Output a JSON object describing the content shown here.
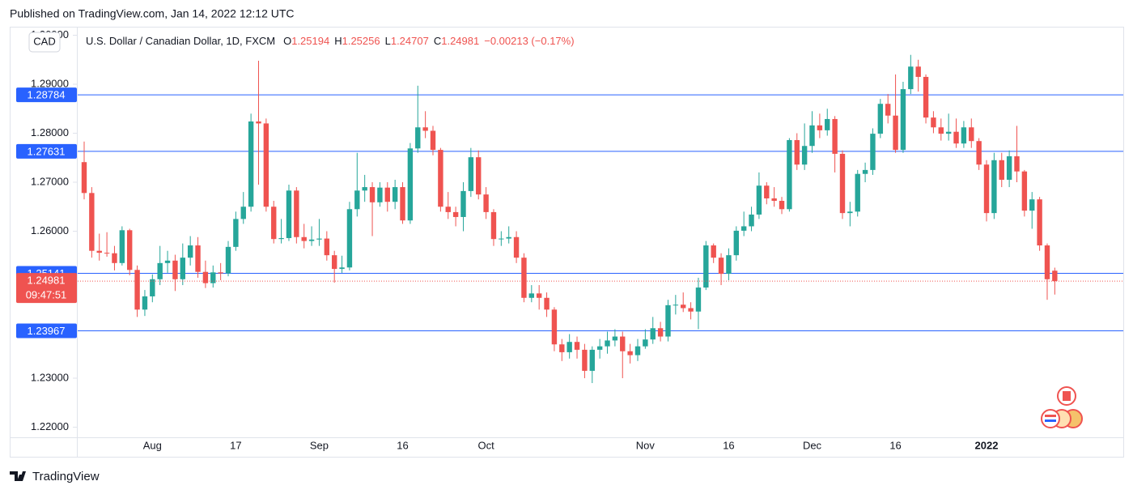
{
  "header": "Published on TradingView.com, Jan 14, 2022 12:12 UTC",
  "footer": "TradingView",
  "chart_data": {
    "type": "candlestick",
    "title": "U.S. Dollar / Canadian Dollar, 1D, FXCM",
    "ohlc_labels": [
      "O",
      "H",
      "L",
      "C"
    ],
    "change_label": "−0.00213 (−0.17%)",
    "currency": "CAD",
    "countdown": "09:47:51",
    "up_color": "#26a69a",
    "down_color": "#ef5350",
    "level_color": "#2962ff",
    "categories": [
      null,
      null,
      null,
      null,
      null,
      null,
      null,
      null,
      null,
      "Aug",
      null,
      null,
      null,
      null,
      null,
      null,
      null,
      null,
      null,
      null,
      "17",
      null,
      null,
      null,
      null,
      null,
      null,
      null,
      null,
      null,
      null,
      "Sep",
      null,
      null,
      null,
      null,
      null,
      null,
      null,
      null,
      null,
      null,
      "16",
      null,
      null,
      null,
      null,
      null,
      null,
      null,
      null,
      null,
      null,
      "Oct",
      null,
      null,
      null,
      null,
      null,
      null,
      null,
      null,
      null,
      null,
      null,
      null,
      null,
      null,
      null,
      null,
      null,
      null,
      null,
      null,
      "Nov",
      null,
      null,
      null,
      null,
      null,
      null,
      null,
      null,
      null,
      null,
      "16",
      null,
      null,
      null,
      null,
      null,
      null,
      null,
      null,
      null,
      null,
      "Dec",
      null,
      null,
      null,
      null,
      null,
      null,
      null,
      null,
      null,
      null,
      "16",
      null,
      null,
      null,
      null,
      null,
      null,
      null,
      null,
      null,
      null,
      null,
      "2022",
      null,
      null,
      null,
      null,
      null,
      null,
      null,
      null,
      null
    ],
    "open": [
      1.2741,
      1.2678,
      1.256,
      1.2556,
      1.2555,
      1.2535,
      1.2602,
      1.2521,
      1.244,
      1.2467,
      1.2502,
      1.2535,
      1.254,
      1.2502,
      1.2546,
      1.2571,
      1.2517,
      1.2494,
      1.2516,
      1.2514,
      1.2568,
      1.2625,
      1.265,
      1.2824,
      1.282,
      1.265,
      1.2584,
      1.2586,
      1.2683,
      1.2588,
      1.258,
      1.2583,
      1.2585,
      1.2551,
      1.2523,
      1.2526,
      1.2645,
      1.2683,
      1.269,
      1.2659,
      1.2689,
      1.266,
      1.269,
      1.2622,
      1.2769,
      1.2812,
      1.2805,
      1.2766,
      1.265,
      1.2639,
      1.2629,
      1.2682,
      1.2751,
      1.2675,
      1.2639,
      1.2584,
      1.2585,
      1.2588,
      1.2546,
      1.2464,
      1.2473,
      1.2464,
      1.244,
      1.2369,
      1.2353,
      1.2374,
      1.2358,
      1.2315,
      1.2358,
      1.2365,
      1.2377,
      1.2385,
      1.2355,
      1.2347,
      1.2365,
      1.2379,
      1.2402,
      1.2385,
      1.2449,
      1.245,
      1.2443,
      1.2436,
      1.2485,
      1.2571,
      1.2546,
      1.2513,
      1.2551,
      1.2601,
      1.261,
      1.2634,
      1.2693,
      1.2667,
      1.2662,
      1.2645,
      1.2786,
      1.2736,
      1.2774,
      1.2816,
      1.2806,
      1.2829,
      1.2758,
      1.2637,
      1.264,
      1.2717,
      1.2725,
      1.2799,
      1.286,
      1.2836,
      1.2766,
      1.289,
      1.2936,
      1.2915,
      1.2832,
      1.2812,
      1.2799,
      1.2803,
      1.2779,
      1.2812,
      1.2784,
      1.2736,
      1.2637,
      1.2745,
      1.2705,
      1.2753,
      1.2722,
      1.2642,
      1.2665,
      1.2571,
      1.25194
    ],
    "high": [
      1.2783,
      1.269,
      1.2595,
      1.2598,
      1.257,
      1.261,
      1.2605,
      1.253,
      1.248,
      1.2512,
      1.257,
      1.256,
      1.2552,
      1.2575,
      1.259,
      1.2588,
      1.254,
      1.253,
      1.2535,
      1.258,
      1.264,
      1.268,
      1.284,
      1.2948,
      1.283,
      1.2662,
      1.2625,
      1.2695,
      1.269,
      1.2615,
      1.261,
      1.2625,
      1.26,
      1.256,
      1.255,
      1.266,
      1.276,
      1.2715,
      1.27,
      1.27,
      1.27,
      1.2705,
      1.27,
      1.278,
      1.2897,
      1.2845,
      1.2815,
      1.277,
      1.268,
      1.265,
      1.27,
      1.277,
      1.2765,
      1.269,
      1.2645,
      1.26,
      1.261,
      1.26,
      1.2555,
      1.249,
      1.249,
      1.2475,
      1.2445,
      1.238,
      1.239,
      1.2385,
      1.237,
      1.2365,
      1.238,
      1.2395,
      1.24,
      1.2395,
      1.237,
      1.238,
      1.24,
      1.2425,
      1.2415,
      1.246,
      1.247,
      1.2475,
      1.2455,
      1.2505,
      1.258,
      1.2575,
      1.2555,
      1.2565,
      1.261,
      1.264,
      1.265,
      1.272,
      1.27,
      1.269,
      1.267,
      1.279,
      1.28,
      1.282,
      1.2845,
      1.284,
      1.285,
      1.2835,
      1.2765,
      1.266,
      1.2725,
      1.274,
      1.281,
      1.287,
      1.288,
      1.292,
      1.2905,
      1.296,
      1.295,
      1.292,
      1.2845,
      1.283,
      1.284,
      1.283,
      1.2825,
      1.283,
      1.279,
      1.2745,
      1.276,
      1.276,
      1.2765,
      1.2815,
      1.2725,
      1.268,
      1.267,
      1.2575,
      1.25256
    ],
    "low": [
      1.2665,
      1.2546,
      1.254,
      1.2548,
      1.252,
      1.253,
      1.251,
      1.2425,
      1.2427,
      1.2455,
      1.249,
      1.2515,
      1.2478,
      1.249,
      1.253,
      1.2505,
      1.2484,
      1.2485,
      1.25,
      1.2508,
      1.256,
      1.2615,
      1.264,
      1.2695,
      1.264,
      1.2575,
      1.2575,
      1.258,
      1.2575,
      1.2565,
      1.257,
      1.257,
      1.254,
      1.2495,
      1.2515,
      1.252,
      1.263,
      1.266,
      1.259,
      1.265,
      1.264,
      1.2645,
      1.2615,
      1.2615,
      1.276,
      1.279,
      1.2755,
      1.264,
      1.2625,
      1.261,
      1.26,
      1.267,
      1.2665,
      1.2625,
      1.257,
      1.257,
      1.2575,
      1.2535,
      1.2455,
      1.2455,
      1.244,
      1.2425,
      1.2355,
      1.2335,
      1.234,
      1.234,
      1.23,
      1.229,
      1.234,
      1.235,
      1.2365,
      1.23,
      1.233,
      1.2335,
      1.236,
      1.237,
      1.2375,
      1.2375,
      1.243,
      1.2435,
      1.242,
      1.24,
      1.248,
      1.2535,
      1.249,
      1.25,
      1.254,
      1.259,
      1.26,
      1.2625,
      1.2655,
      1.265,
      1.2635,
      1.264,
      1.2725,
      1.2725,
      1.276,
      1.279,
      1.2795,
      1.272,
      1.2625,
      1.261,
      1.263,
      1.27,
      1.2715,
      1.279,
      1.282,
      1.276,
      1.276,
      1.288,
      1.2885,
      1.282,
      1.28,
      1.2785,
      1.2785,
      1.277,
      1.277,
      1.277,
      1.2725,
      1.262,
      1.2625,
      1.269,
      1.269,
      1.27,
      1.263,
      1.2605,
      1.256,
      1.246,
      1.24707
    ],
    "close": [
      1.2678,
      1.256,
      1.2556,
      1.2555,
      1.2535,
      1.2602,
      1.2521,
      1.244,
      1.2467,
      1.2502,
      1.2535,
      1.254,
      1.2502,
      1.2546,
      1.2571,
      1.2517,
      1.2494,
      1.2516,
      1.2514,
      1.2568,
      1.2625,
      1.265,
      1.2824,
      1.282,
      1.265,
      1.2584,
      1.2586,
      1.2683,
      1.2588,
      1.258,
      1.2583,
      1.2585,
      1.2551,
      1.2523,
      1.2526,
      1.2645,
      1.2683,
      1.269,
      1.2659,
      1.2689,
      1.266,
      1.269,
      1.2622,
      1.2769,
      1.2812,
      1.2805,
      1.2766,
      1.265,
      1.2639,
      1.2629,
      1.2682,
      1.2751,
      1.2675,
      1.2639,
      1.2584,
      1.2585,
      1.2588,
      1.2546,
      1.2464,
      1.2473,
      1.2464,
      1.244,
      1.2369,
      1.2353,
      1.2374,
      1.2358,
      1.2315,
      1.2358,
      1.2365,
      1.2377,
      1.2385,
      1.2355,
      1.2347,
      1.2365,
      1.2379,
      1.2402,
      1.2385,
      1.2449,
      1.245,
      1.2443,
      1.2436,
      1.2485,
      1.2571,
      1.2546,
      1.2513,
      1.2551,
      1.2601,
      1.261,
      1.2634,
      1.2693,
      1.2667,
      1.2662,
      1.2645,
      1.2786,
      1.2736,
      1.2774,
      1.2816,
      1.2806,
      1.2829,
      1.2758,
      1.2637,
      1.264,
      1.2717,
      1.2725,
      1.2799,
      1.286,
      1.2836,
      1.2766,
      1.289,
      1.2936,
      1.2915,
      1.2832,
      1.2812,
      1.2799,
      1.2803,
      1.2779,
      1.2812,
      1.2784,
      1.2736,
      1.2637,
      1.2745,
      1.2705,
      1.2753,
      1.2722,
      1.2642,
      1.2665,
      1.2571,
      1.2502,
      1.24981
    ],
    "levels": [
      1.28784,
      1.27631,
      1.25141,
      1.23967
    ],
    "ylim": [
      1.21793,
      1.30174
    ],
    "yticks": [
      {
        "value": 1.22,
        "label": "1.22000"
      },
      {
        "value": 1.23,
        "label": "1.23000"
      },
      {
        "value": 1.24,
        "label": "1.24000"
      },
      {
        "value": 1.25,
        "label": "1.25000"
      },
      {
        "value": 1.26,
        "label": "1.26000"
      },
      {
        "value": 1.27,
        "label": "1.27000"
      },
      {
        "value": 1.28,
        "label": "1.28000"
      },
      {
        "value": 1.29,
        "label": "1.29000"
      },
      {
        "value": 1.3,
        "label": "1.30000"
      }
    ]
  }
}
